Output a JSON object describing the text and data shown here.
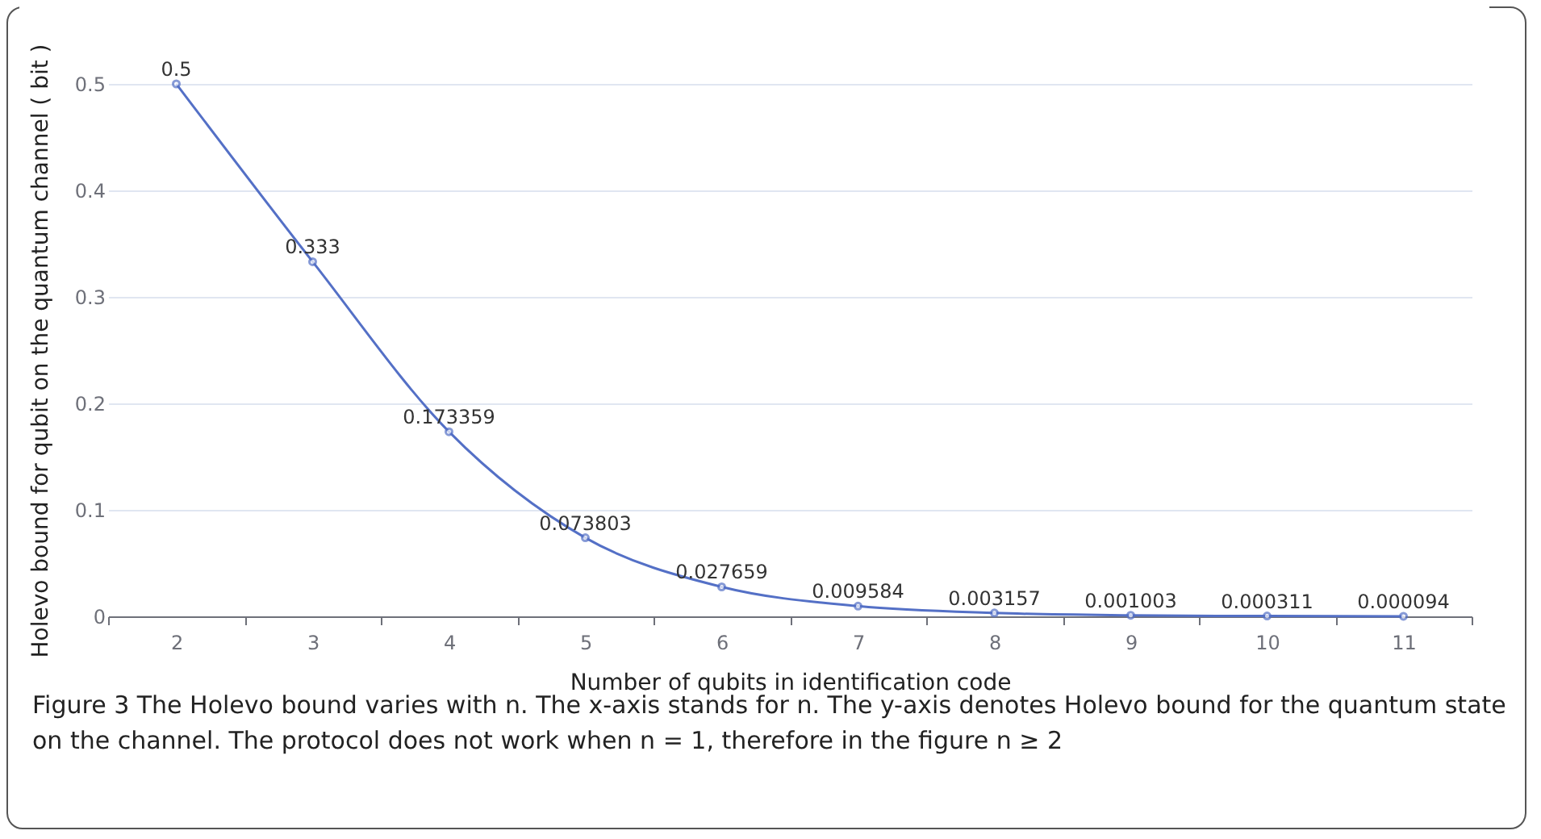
{
  "chart_data": {
    "type": "line",
    "xlabel": "Number of qubits in identification code",
    "ylabel": "Holevo bound for qubit on the quantum channel ( bit )",
    "categories": [
      "2",
      "3",
      "4",
      "5",
      "6",
      "7",
      "8",
      "9",
      "10",
      "11"
    ],
    "series": [
      {
        "color": "#5470c6",
        "values": [
          0.5,
          0.333,
          0.173359,
          0.073803,
          0.027659,
          0.009584,
          0.003157,
          0.001003,
          0.000311,
          9.4e-05
        ],
        "value_labels": [
          "0.5",
          "0.333",
          "0.173359",
          "0.073803",
          "0.027659",
          "0.009584",
          "0.003157",
          "0.001003",
          "0.000311",
          "0.000094"
        ]
      }
    ],
    "ylim": [
      0,
      0.5
    ],
    "yticks": [
      0,
      0.1,
      0.2,
      0.3,
      0.4,
      0.5
    ],
    "grid": "y",
    "marker": "circle",
    "annotations": [
      "Figure 3  The Holevo bound varies with n. The x-axis stands for n. The y-axis denotes Holevo bound for the quantum state on the channel. The protocol does not work when n = 1, therefore in the figure n ≥ 2"
    ]
  }
}
